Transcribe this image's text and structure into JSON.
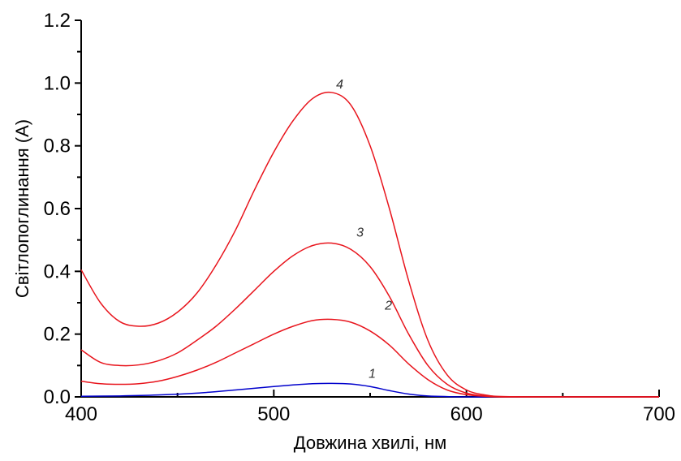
{
  "chart_data": {
    "type": "line",
    "title": "",
    "xlabel": "Довжина хвилі, нм",
    "ylabel": "Світлопоглинання (А)",
    "xlim": [
      400,
      700
    ],
    "ylim": [
      0,
      1.2
    ],
    "xticks": [
      400,
      500,
      600,
      700
    ],
    "yticks": [
      0.0,
      0.2,
      0.4,
      0.6,
      0.8,
      1.0,
      1.2
    ],
    "ytick_labels": [
      "0.0",
      "0.2",
      "0.4",
      "0.6",
      "0.8",
      "1.0",
      "1.2"
    ],
    "xtick_labels": [
      "400",
      "500",
      "600",
      "700"
    ],
    "grid": false,
    "legend": "none",
    "series": [
      {
        "label": "1",
        "color": "#0000cc",
        "x": [
          400,
          420,
          440,
          460,
          480,
          500,
          510,
          520,
          530,
          540,
          550,
          560,
          570,
          580,
          600,
          620,
          650,
          700
        ],
        "y": [
          0.002,
          0.003,
          0.006,
          0.012,
          0.022,
          0.033,
          0.038,
          0.042,
          0.043,
          0.041,
          0.033,
          0.02,
          0.009,
          0.003,
          0.0,
          0.0,
          0.0,
          0.0
        ]
      },
      {
        "label": "2",
        "color": "#e8141c",
        "x": [
          400,
          410,
          420,
          430,
          440,
          450,
          460,
          470,
          480,
          490,
          500,
          510,
          520,
          530,
          540,
          550,
          560,
          570,
          580,
          590,
          600,
          610,
          620,
          650,
          700
        ],
        "y": [
          0.05,
          0.042,
          0.04,
          0.042,
          0.05,
          0.065,
          0.085,
          0.11,
          0.14,
          0.17,
          0.2,
          0.225,
          0.243,
          0.247,
          0.238,
          0.21,
          0.165,
          0.105,
          0.055,
          0.022,
          0.007,
          0.002,
          0.0,
          0.0,
          0.0
        ]
      },
      {
        "label": "3",
        "color": "#e8141c",
        "x": [
          400,
          410,
          420,
          430,
          440,
          450,
          460,
          470,
          480,
          490,
          500,
          510,
          520,
          530,
          540,
          550,
          560,
          570,
          580,
          590,
          600,
          610,
          620,
          650,
          700
        ],
        "y": [
          0.15,
          0.11,
          0.1,
          0.102,
          0.115,
          0.14,
          0.18,
          0.225,
          0.28,
          0.34,
          0.4,
          0.45,
          0.482,
          0.49,
          0.47,
          0.415,
          0.32,
          0.2,
          0.1,
          0.04,
          0.012,
          0.003,
          0.0,
          0.0,
          0.0
        ]
      },
      {
        "label": "4",
        "color": "#e8141c",
        "x": [
          400,
          410,
          420,
          430,
          440,
          450,
          460,
          470,
          480,
          490,
          500,
          510,
          520,
          530,
          540,
          550,
          560,
          570,
          580,
          590,
          600,
          610,
          620,
          650,
          700
        ],
        "y": [
          0.405,
          0.3,
          0.24,
          0.225,
          0.235,
          0.27,
          0.33,
          0.42,
          0.53,
          0.66,
          0.78,
          0.88,
          0.95,
          0.97,
          0.93,
          0.8,
          0.6,
          0.37,
          0.18,
          0.07,
          0.022,
          0.006,
          0.001,
          0.0,
          0.0
        ]
      }
    ]
  }
}
